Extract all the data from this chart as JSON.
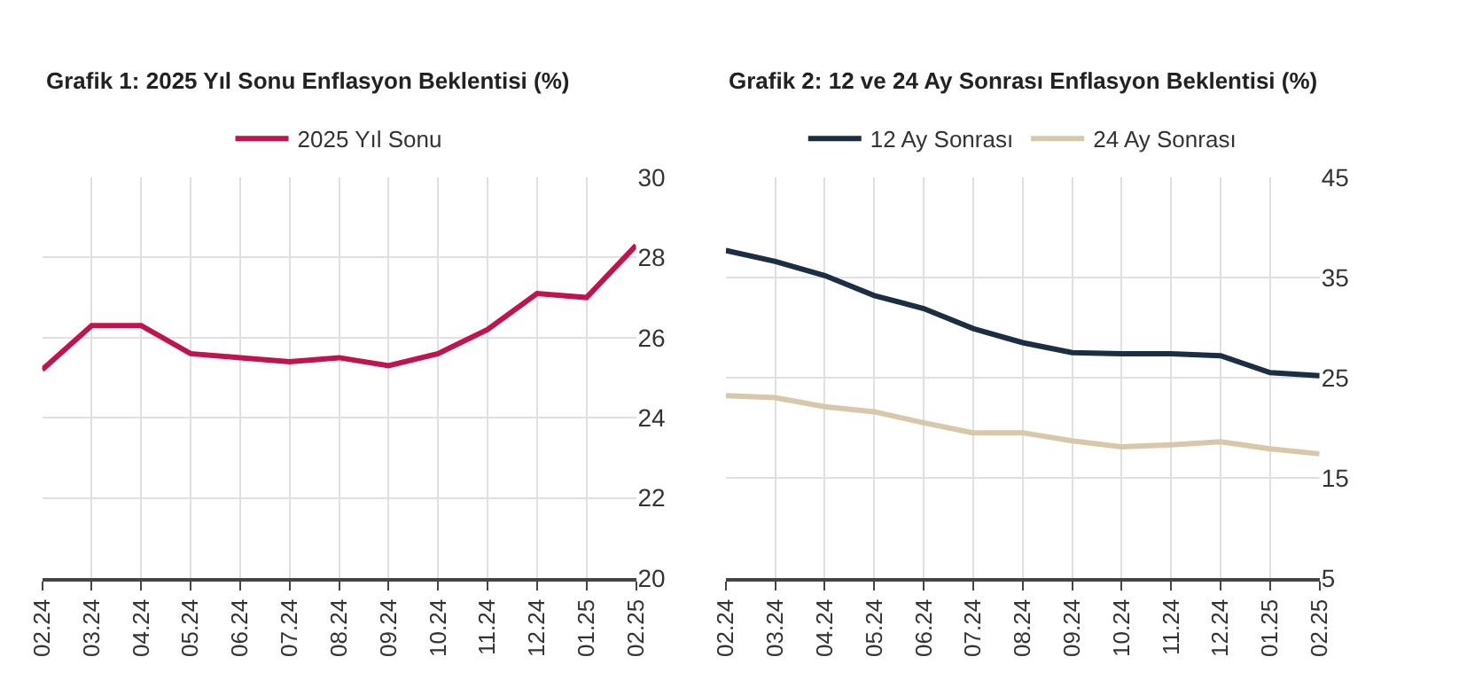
{
  "chart_data": [
    {
      "type": "line",
      "title": "Grafik 1: 2025 Yıl Sonu Enflasyon Beklentisi (%)",
      "categories": [
        "02.24",
        "03.24",
        "04.24",
        "05.24",
        "06.24",
        "07.24",
        "08.24",
        "09.24",
        "10.24",
        "11.24",
        "12.24",
        "01.25",
        "02.25"
      ],
      "series": [
        {
          "name": "2025 Yıl Sonu",
          "color": "#c0144c",
          "values": [
            25.2,
            26.3,
            26.3,
            25.6,
            25.5,
            25.4,
            25.5,
            25.3,
            25.6,
            26.2,
            27.1,
            27.0,
            28.3
          ]
        }
      ],
      "ylim": [
        20,
        30
      ],
      "yticks": [
        20,
        22,
        24,
        26,
        28,
        30
      ],
      "grid": true,
      "legend": "top",
      "marker": "none",
      "line_style": "solid"
    },
    {
      "type": "line",
      "title": "Grafik 2: 12 ve 24 Ay Sonrası Enflasyon Beklentisi (%)",
      "categories": [
        "02.24",
        "03.24",
        "04.24",
        "05.24",
        "06.24",
        "07.24",
        "08.24",
        "09.24",
        "10.24",
        "11.24",
        "12.24",
        "01.25",
        "02.25"
      ],
      "series": [
        {
          "name": "12 Ay Sonrası",
          "color": "#1c2e44",
          "values": [
            37.7,
            36.6,
            35.2,
            33.2,
            31.9,
            29.9,
            28.5,
            27.5,
            27.4,
            27.4,
            27.2,
            25.5,
            25.2
          ]
        },
        {
          "name": "24 Ay Sonrası",
          "color": "#d8c8aa",
          "values": [
            23.2,
            23.0,
            22.1,
            21.6,
            20.5,
            19.5,
            19.5,
            18.7,
            18.1,
            18.3,
            18.6,
            17.9,
            17.4
          ]
        }
      ],
      "ylim": [
        5,
        45
      ],
      "yticks": [
        5,
        15,
        25,
        35,
        45
      ],
      "grid": true,
      "legend": "top",
      "marker": "none",
      "line_style": "solid"
    }
  ]
}
